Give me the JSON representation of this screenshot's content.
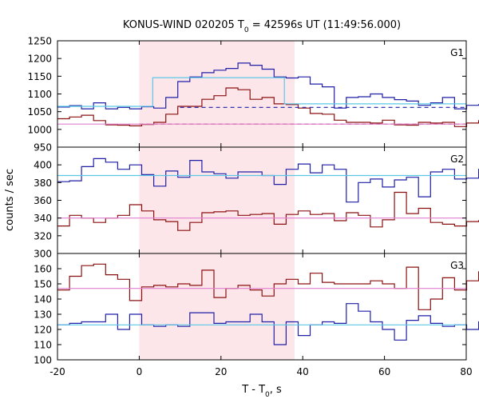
{
  "chart_data": {
    "type": "line",
    "title": "KONUS-WIND 020205 T",
    "title_sub": "0",
    "title_rest": " = 42596s UT (11:49:56.000)",
    "xlabel": "T - T",
    "xlabel_sub": "0",
    "xlabel_rest": ", s",
    "ylabel": "counts / sec",
    "xlim": [
      -20,
      80
    ],
    "x_ticks": [
      -20,
      0,
      20,
      40,
      60,
      80
    ],
    "x_tick_labels": [
      "-20",
      "0",
      "20",
      "40",
      "60",
      "80"
    ],
    "shaded_interval": [
      0,
      38
    ],
    "panels": [
      {
        "name": "G1",
        "ylim": [
          950,
          1250
        ],
        "y_ticks": [
          950,
          1000,
          1050,
          1100,
          1150,
          1200,
          1250
        ],
        "y_tick_labels": [
          "950",
          "1000",
          "1050",
          "1100",
          "1150",
          "1200",
          "1250"
        ],
        "series": [
          {
            "color": "#1f1fa8",
            "x_start": -20,
            "step": 2.944,
            "values": [
              1063,
              1067,
              1058,
              1075,
              1058,
              1062,
              1058,
              1064,
              1060,
              1090,
              1135,
              1148,
              1160,
              1167,
              1172,
              1187,
              1181,
              1170,
              1148,
              1145,
              1148,
              1128,
              1120,
              1060,
              1090,
              1092,
              1100,
              1090,
              1084,
              1080,
              1068,
              1075,
              1090,
              1058,
              1068,
              1070
            ]
          },
          {
            "color": "#8b1010",
            "x_start": -20,
            "step": 2.944,
            "values": [
              1030,
              1035,
              1040,
              1025,
              1013,
              1012,
              1010,
              1014,
              1020,
              1043,
              1065,
              1065,
              1085,
              1095,
              1117,
              1112,
              1085,
              1090,
              1072,
              1070,
              1060,
              1045,
              1043,
              1026,
              1020,
              1020,
              1018,
              1026,
              1013,
              1012,
              1020,
              1018,
              1020,
              1008,
              1018,
              1025
            ]
          },
          {
            "color": "#5bc8e6",
            "segments": [
              {
                "x": [
                  -20,
                  3.3
                ],
                "y": [
                  1065,
                  1065
                ]
              },
              {
                "x": [
                  3.3,
                  35.5
                ],
                "y": [
                  1146,
                  1146
                ]
              },
              {
                "x": [
                  35.5,
                  80
                ],
                "y": [
                  1072,
                  1072
                ]
              }
            ]
          },
          {
            "color": "#1f1fa8",
            "dashed": true,
            "x": [
              10,
              80
            ],
            "y": [
              1062,
              1062
            ]
          },
          {
            "color": "#8b1010",
            "dashed": true,
            "x": [
              0,
              80
            ],
            "y": [
              1015,
              1015
            ]
          },
          {
            "color": "#e080d0",
            "x": [
              -20,
              80
            ],
            "y": [
              1015,
              1015
            ]
          }
        ]
      },
      {
        "name": "G2",
        "ylim": [
          300,
          420
        ],
        "y_ticks": [
          300,
          320,
          340,
          360,
          380,
          400
        ],
        "y_tick_labels": [
          "300",
          "320",
          "340",
          "360",
          "380",
          "400"
        ],
        "series": [
          {
            "color": "#1f1fa8",
            "x_start": -20,
            "step": 2.944,
            "values": [
              381,
              382,
              398,
              407,
              403,
              395,
              400,
              389,
              376,
              393,
              386,
              405,
              392,
              390,
              385,
              392,
              392,
              388,
              378,
              395,
              401,
              391,
              400,
              395,
              358,
              380,
              384,
              375,
              383,
              386,
              364,
              392,
              395,
              384,
              385,
              395
            ]
          },
          {
            "color": "#8b1010",
            "x_start": -20,
            "step": 2.944,
            "values": [
              331,
              343,
              340,
              335,
              340,
              343,
              355,
              348,
              338,
              336,
              326,
              335,
              346,
              347,
              348,
              343,
              344,
              345,
              333,
              344,
              348,
              344,
              345,
              337,
              346,
              343,
              330,
              338,
              369,
              345,
              351,
              335,
              333,
              331,
              336,
              337
            ]
          },
          {
            "color": "#5bc8e6",
            "x": [
              -20,
              80
            ],
            "y": [
              388,
              388
            ]
          },
          {
            "color": "#e080d0",
            "x": [
              -20,
              80
            ],
            "y": [
              340,
              340
            ]
          }
        ]
      },
      {
        "name": "G3",
        "ylim": [
          100,
          170
        ],
        "y_ticks": [
          100,
          110,
          120,
          130,
          140,
          150,
          160
        ],
        "y_tick_labels": [
          "100",
          "110",
          "120",
          "130",
          "140",
          "150",
          "160"
        ],
        "series": [
          {
            "color": "#1f1fa8",
            "x_start": -20,
            "step": 2.944,
            "values": [
              123,
              124,
              125,
              125,
              130,
              120,
              130,
              123,
              122,
              123,
              122,
              131,
              131,
              124,
              125,
              125,
              130,
              125,
              110,
              125,
              116,
              123,
              125,
              124,
              137,
              132,
              125,
              120,
              113,
              126,
              129,
              124,
              122,
              123,
              120,
              125
            ]
          },
          {
            "color": "#8b1010",
            "x_start": -20,
            "step": 2.944,
            "values": [
              146,
              155,
              162,
              163,
              156,
              153,
              139,
              148,
              149,
              148,
              150,
              149,
              159,
              141,
              147,
              149,
              146,
              142,
              150,
              153,
              150,
              157,
              151,
              150,
              150,
              150,
              152,
              150,
              147,
              161,
              133,
              140,
              154,
              146,
              152,
              158
            ]
          },
          {
            "color": "#5bc8e6",
            "x": [
              -20,
              80
            ],
            "y": [
              123,
              123
            ]
          },
          {
            "color": "#e080d0",
            "x": [
              -20,
              80
            ],
            "y": [
              147,
              147
            ]
          }
        ]
      }
    ]
  }
}
